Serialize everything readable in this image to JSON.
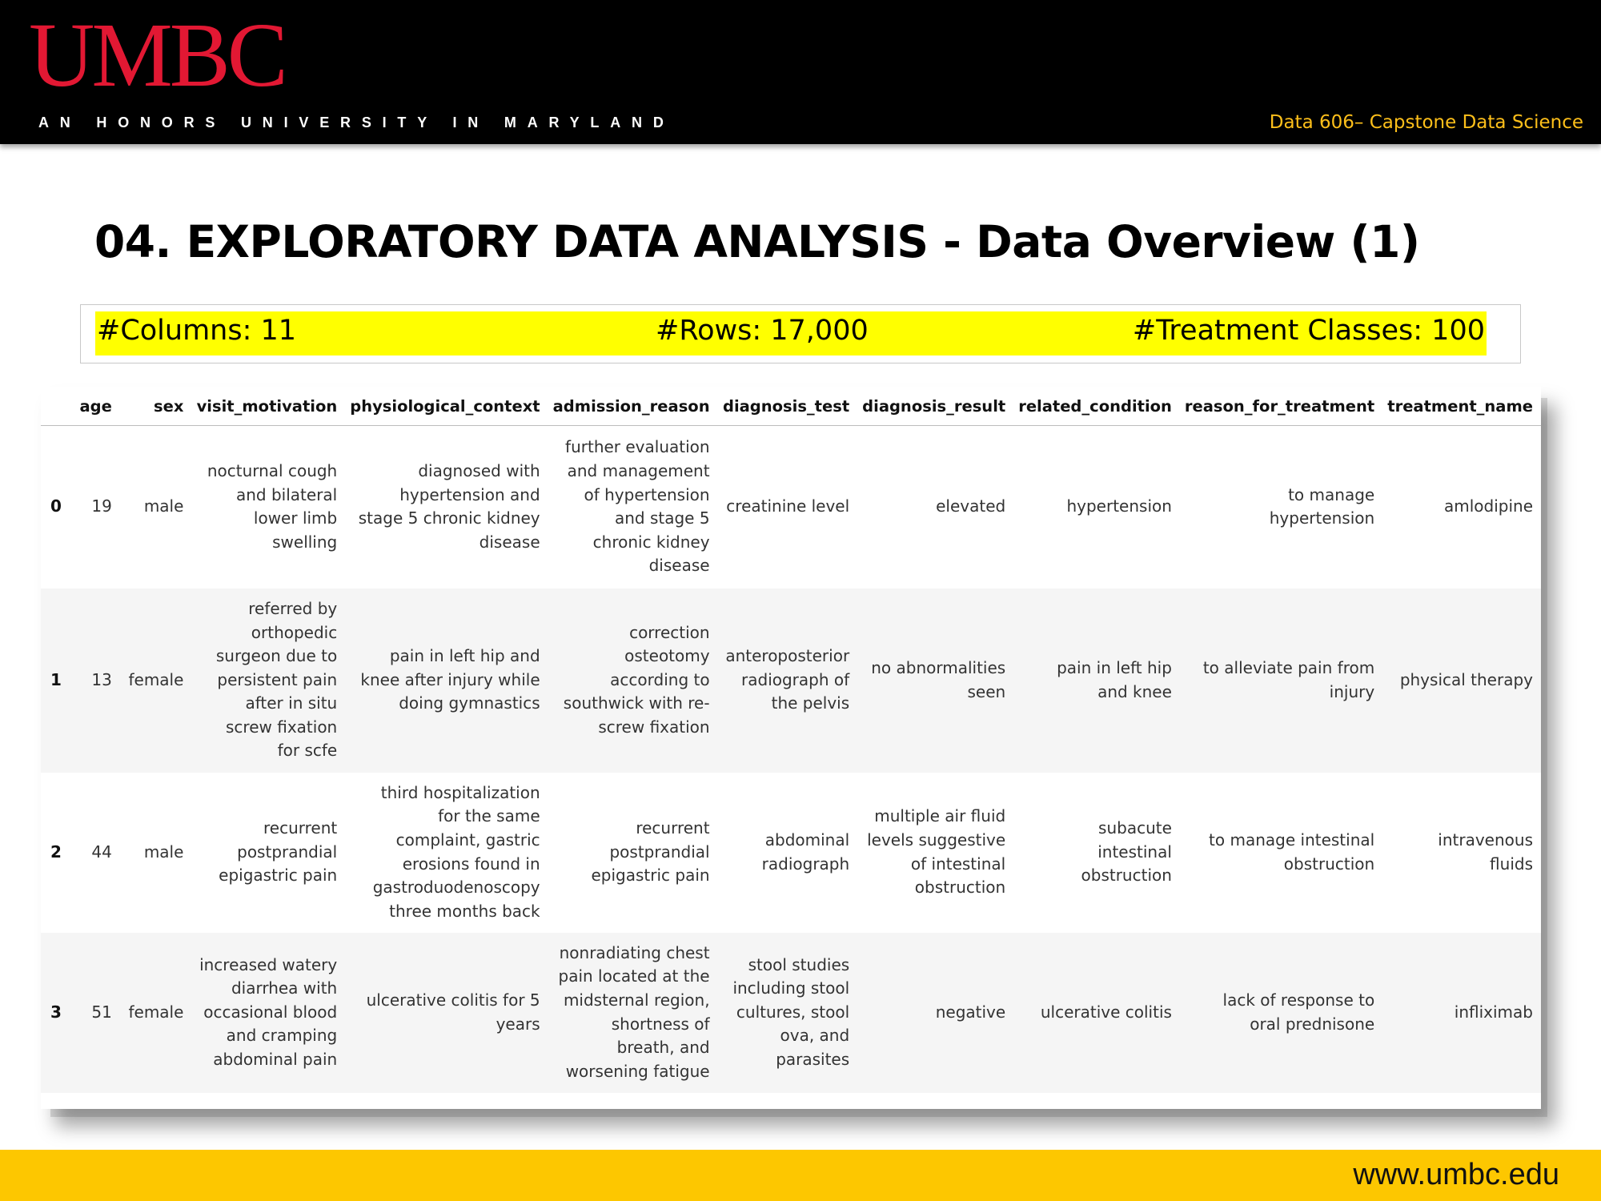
{
  "header": {
    "logo_text": "UMBC",
    "tagline": "AN HONORS UNIVERSITY IN MARYLAND",
    "course": "Data 606– Capstone Data Science",
    "colors": {
      "background": "#000000",
      "logo": "#e21833",
      "course_text": "#fdbf1a"
    }
  },
  "slide": {
    "title": "04. EXPLORATORY DATA ANALYSIS - Data Overview (1)"
  },
  "stats": {
    "columns": "#Columns: 11",
    "rows": "#Rows: 17,000",
    "classes": "#Treatment Classes: 100",
    "highlight_color": "#ffff00"
  },
  "table": {
    "headers": [
      "",
      "age",
      "sex",
      "visit_motivation",
      "physiological_context",
      "admission_reason",
      "diagnosis_test",
      "diagnosis_result",
      "related_condition",
      "reason_for_treatment",
      "treatment_name"
    ],
    "rows": [
      {
        "index": "0",
        "age": "19",
        "sex": "male",
        "visit_motivation": [
          "nocturnal cough",
          "and bilateral",
          "lower limb",
          "swelling"
        ],
        "physiological_context": [
          "diagnosed with",
          "hypertension and",
          "stage 5 chronic kidney",
          "disease"
        ],
        "admission_reason": [
          "further evaluation",
          "and management",
          "of hypertension",
          "and stage 5",
          "chronic kidney",
          "disease"
        ],
        "diagnosis_test": [
          "creatinine level"
        ],
        "diagnosis_result": [
          "elevated"
        ],
        "related_condition": [
          "hypertension"
        ],
        "reason_for_treatment": [
          "to manage",
          "hypertension"
        ],
        "treatment_name": [
          "amlodipine"
        ]
      },
      {
        "index": "1",
        "age": "13",
        "sex": "female",
        "visit_motivation": [
          "referred by",
          "orthopedic",
          "surgeon due to",
          "persistent pain",
          "after in situ",
          "screw fixation",
          "for scfe"
        ],
        "physiological_context": [
          "pain in left hip and",
          "knee after injury while",
          "doing gymnastics"
        ],
        "admission_reason": [
          "correction",
          "osteotomy",
          "according to",
          "southwick with re-",
          "screw fixation"
        ],
        "diagnosis_test": [
          "anteroposterior",
          "radiograph of",
          "the pelvis"
        ],
        "diagnosis_result": [
          "no abnormalities",
          "seen"
        ],
        "related_condition": [
          "pain in left hip",
          "and knee"
        ],
        "reason_for_treatment": [
          "to alleviate pain from",
          "injury"
        ],
        "treatment_name": [
          "physical therapy"
        ]
      },
      {
        "index": "2",
        "age": "44",
        "sex": "male",
        "visit_motivation": [
          "recurrent",
          "postprandial",
          "epigastric pain"
        ],
        "physiological_context": [
          "third hospitalization",
          "for the same",
          "complaint, gastric",
          "erosions found in",
          "gastroduodenoscopy",
          "three months back"
        ],
        "admission_reason": [
          "recurrent",
          "postprandial",
          "epigastric pain"
        ],
        "diagnosis_test": [
          "abdominal",
          "radiograph"
        ],
        "diagnosis_result": [
          "multiple air fluid",
          "levels suggestive",
          "of intestinal",
          "obstruction"
        ],
        "related_condition": [
          "subacute",
          "intestinal",
          "obstruction"
        ],
        "reason_for_treatment": [
          "to manage intestinal",
          "obstruction"
        ],
        "treatment_name": [
          "intravenous",
          "fluids"
        ]
      },
      {
        "index": "3",
        "age": "51",
        "sex": "female",
        "visit_motivation": [
          "increased watery",
          "diarrhea with",
          "occasional blood",
          "and cramping",
          "abdominal pain"
        ],
        "physiological_context": [
          "ulcerative colitis for 5",
          "years"
        ],
        "admission_reason": [
          "nonradiating chest",
          "pain located at the",
          "midsternal region,",
          "shortness of",
          "breath, and",
          "worsening fatigue"
        ],
        "diagnosis_test": [
          "stool studies",
          "including stool",
          "cultures, stool",
          "ova, and",
          "parasites"
        ],
        "diagnosis_result": [
          "negative"
        ],
        "related_condition": [
          "ulcerative colitis"
        ],
        "reason_for_treatment": [
          "lack of response to",
          "oral prednisone"
        ],
        "treatment_name": [
          "infliximab"
        ]
      }
    ]
  },
  "footer": {
    "url": "www.umbc.edu",
    "color": "#fdc700"
  }
}
